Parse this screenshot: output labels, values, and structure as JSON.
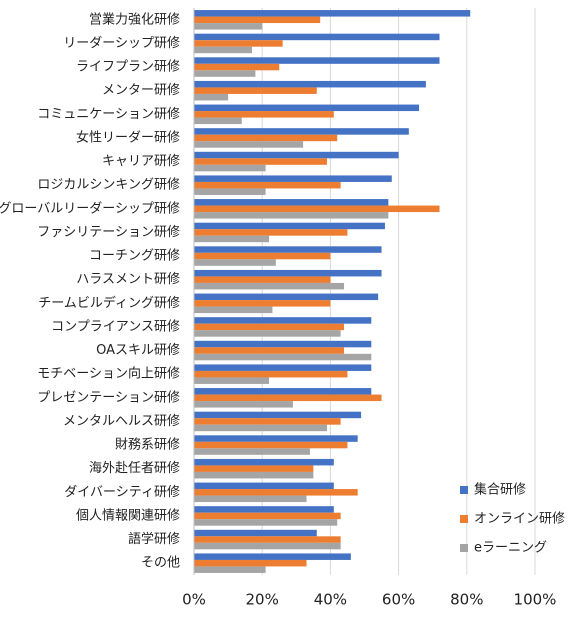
{
  "chart_data": {
    "type": "hbar",
    "categories": [
      "営業力強化研修",
      "リーダーシップ研修",
      "ライフプラン研修",
      "メンター研修",
      "コミュニケーション研修",
      "女性リーダー研修",
      "キャリア研修",
      "ロジカルシンキング研修",
      "グローバルリーダーシップ研修",
      "ファシリテーション研修",
      "コーチング研修",
      "ハラスメント研修",
      "チームビルディング研修",
      "コンプライアンス研修",
      "OAスキル研修",
      "モチベーション向上研修",
      "プレゼンテーション研修",
      "メンタルヘルス研修",
      "財務系研修",
      "海外赴任者研修",
      "ダイバーシティ研修",
      "個人情報関連研修",
      "語学研修",
      "その他"
    ],
    "series": [
      {
        "name": "集合研修",
        "color": "#4472c4",
        "values": [
          81,
          72,
          72,
          68,
          66,
          63,
          60,
          58,
          57,
          56,
          55,
          55,
          54,
          52,
          52,
          52,
          52,
          49,
          48,
          41,
          41,
          41,
          36,
          46
        ]
      },
      {
        "name": "オンライン研修",
        "color": "#ed7d31",
        "values": [
          37,
          26,
          25,
          36,
          41,
          42,
          39,
          43,
          72,
          45,
          40,
          40,
          40,
          44,
          44,
          45,
          55,
          43,
          45,
          35,
          48,
          43,
          43,
          33
        ]
      },
      {
        "name": "eラーニング",
        "color": "#a5a5a5",
        "values": [
          20,
          17,
          18,
          10,
          14,
          32,
          21,
          21,
          57,
          22,
          24,
          44,
          23,
          43,
          52,
          22,
          29,
          39,
          34,
          35,
          33,
          42,
          43,
          21
        ]
      }
    ],
    "xlim": [
      0,
      100
    ],
    "xticks": [
      {
        "value": 0,
        "label": "0%"
      },
      {
        "value": 20,
        "label": "20%"
      },
      {
        "value": 40,
        "label": "40%"
      },
      {
        "value": 60,
        "label": "60%"
      },
      {
        "value": 80,
        "label": "80%"
      },
      {
        "value": 100,
        "label": "100%"
      }
    ],
    "grid": true,
    "legend": "right"
  }
}
